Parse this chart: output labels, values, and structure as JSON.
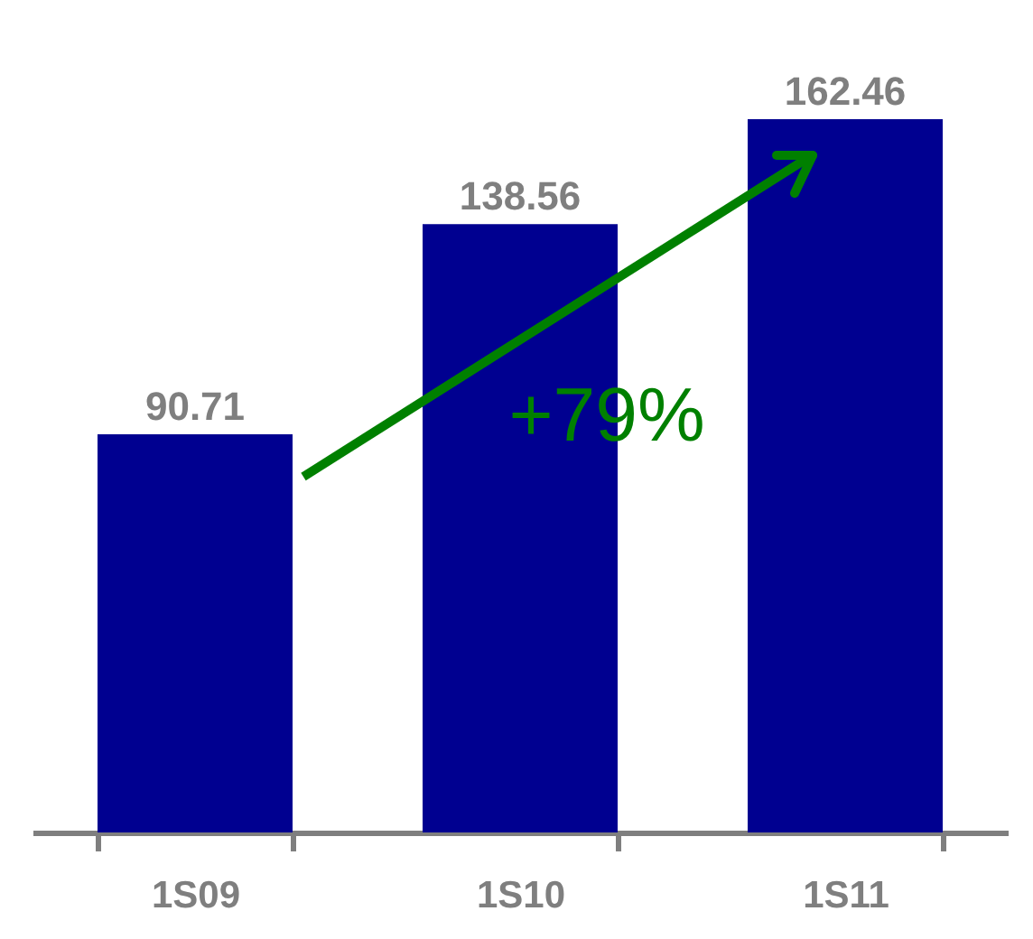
{
  "chart_data": {
    "type": "bar",
    "categories": [
      "1S09",
      "1S10",
      "1S11"
    ],
    "values": [
      90.71,
      138.56,
      162.46
    ],
    "color": "#000090",
    "data_labels": true,
    "annotations": [
      "+79%"
    ]
  }
}
